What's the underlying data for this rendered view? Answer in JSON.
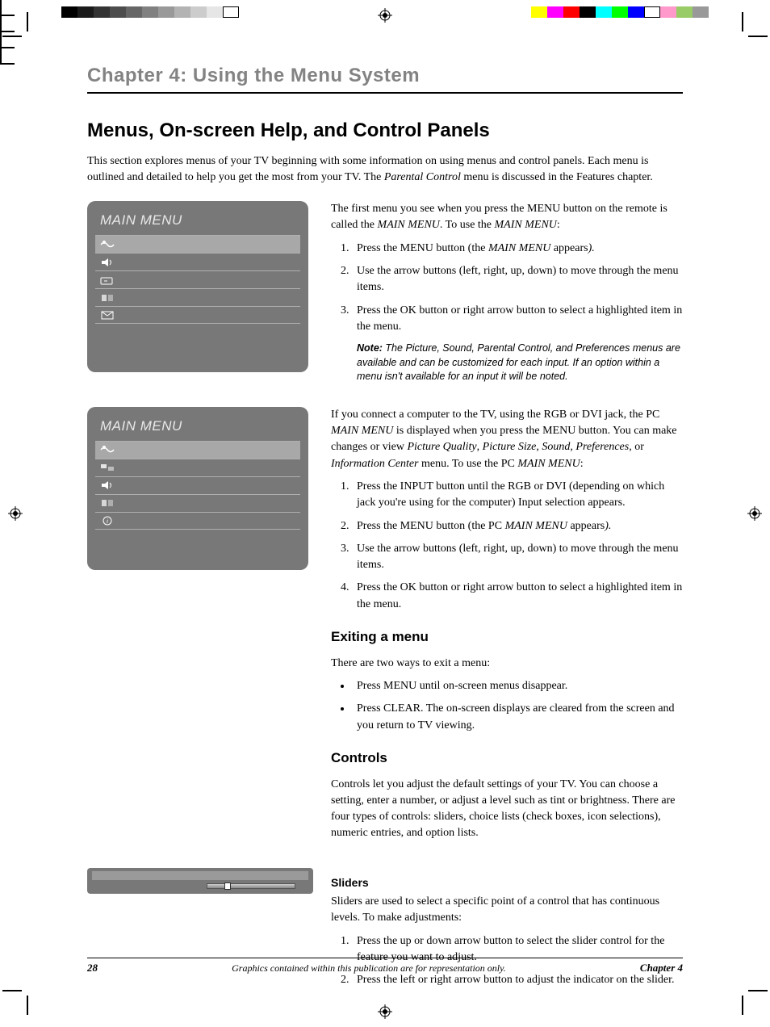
{
  "print_marks": {
    "gray_swatches": [
      "#000000",
      "#1a1a1a",
      "#333333",
      "#4d4d4d",
      "#666666",
      "#808080",
      "#999999",
      "#b3b3b3",
      "#cccccc",
      "#e6e6e6",
      "#ffffff"
    ],
    "color_swatches": [
      "#ffff00",
      "#ff00ff",
      "#ff0000",
      "#000000",
      "#00ffff",
      "#00ff00",
      "#0000ff",
      "#ffffff",
      "#ff99cc",
      "#99cc66",
      "#999999"
    ]
  },
  "chapter_title": "Chapter 4: Using the Menu System",
  "section_title": "Menus, On-screen Help, and Control Panels",
  "intro": "This section explores menus of your TV beginning with some information on using menus and control panels. Each menu is outlined and detailed to help you get the most from your TV. The ",
  "intro_italic": "Parental Control",
  "intro_tail": " menu is discussed in the Features chapter.",
  "menu1": {
    "title": "MAIN MENU",
    "rows": 5
  },
  "menu2": {
    "title": "MAIN MENU",
    "rows": 5
  },
  "block1": {
    "p1a": "The first menu you see when you press the MENU button on the remote is called the ",
    "p1i": "MAIN MENU",
    "p1b": ". To use the ",
    "p1i2": "MAIN MENU",
    "p1c": ":",
    "li1a": "Press the MENU button (the ",
    "li1i": "MAIN MENU",
    "li1b": " appears",
    "li1c": ").",
    "li2": "Use the arrow buttons (left, right, up, down) to move through the menu items.",
    "li3": "Press the OK button or right arrow button to select a highlighted item in the menu.",
    "note_bold": "Note:",
    "note": " The Picture, Sound, Parental Control, and Preferences menus are available and can be customized for each input. If an option within a menu isn't available for an input it will be noted."
  },
  "block2": {
    "p1": "If you connect a computer to the TV, using the RGB or DVI jack, the PC ",
    "p1i": "MAIN MENU",
    "p1b": " is displayed when you press the MENU button. You can make changes or view ",
    "p1i2": "Picture Quality",
    "p1c": ", ",
    "p1i3": "Picture Size",
    "p1d": ", ",
    "p1i4": "Sound",
    "p1e": ", ",
    "p1i5": "Preferences",
    "p1f": ", or ",
    "p1i6": "Information Center",
    "p1g": " menu. To use the PC ",
    "p1i7": "MAIN MENU",
    "p1h": ":",
    "li1": "Press the INPUT button until the RGB or DVI (depending on which jack you're using for the computer) Input selection appears.",
    "li2a": "Press the MENU button (the PC ",
    "li2i": "MAIN MENU",
    "li2b": " appears",
    "li2c": ").",
    "li3": "Use the arrow buttons (left, right, up, down) to move through the menu items.",
    "li4": "Press the OK button or right arrow button to select a highlighted item in the menu."
  },
  "exiting": {
    "h": "Exiting a menu",
    "p": "There are two ways to exit a menu:",
    "b1": "Press MENU until on-screen menus disappear.",
    "b2": "Press CLEAR. The on-screen displays are cleared from the screen and you return to TV viewing."
  },
  "controls": {
    "h": "Controls",
    "p": "Controls let you adjust the default settings of your TV. You can choose a setting, enter a number, or adjust a level such as tint or brightness. There are four types of controls: sliders, choice lists (check boxes, icon selections), numeric entries, and option lists."
  },
  "sliders": {
    "h": "Sliders",
    "p": "Sliders are used to select a specific point of a control that has continuous levels. To make adjustments:",
    "li1": "Press the up or down arrow button to select the slider control for the feature you want to adjust.",
    "li2": "Press the left or right arrow button to adjust the indicator on the slider."
  },
  "footer": {
    "page": "28",
    "mid": "Graphics contained within this publication are for representation only.",
    "chapter": "Chapter 4"
  }
}
